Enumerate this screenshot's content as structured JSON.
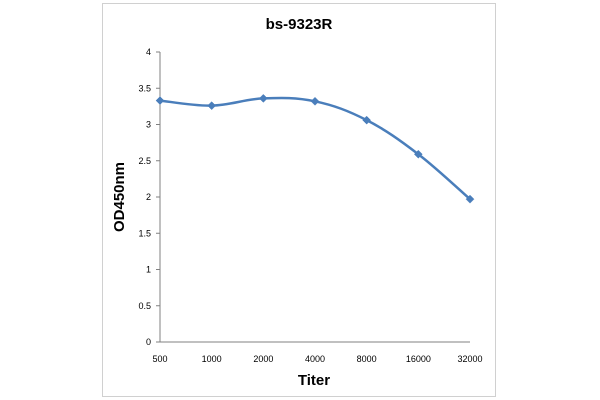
{
  "chart_data": {
    "type": "line",
    "title": "bs-9323R",
    "xlabel": "Titer",
    "ylabel": "OD450nm",
    "categories": [
      "500",
      "1000",
      "2000",
      "4000",
      "8000",
      "16000",
      "32000"
    ],
    "series": [
      {
        "values": [
          3.33,
          3.26,
          3.36,
          3.32,
          3.06,
          2.59,
          1.97
        ],
        "color": "#4a7ebb",
        "marker": "diamond"
      }
    ],
    "ylim": [
      0,
      4
    ],
    "yticks": [
      "0",
      "0.5",
      "1",
      "1.5",
      "2",
      "2.5",
      "3",
      "3.5",
      "4"
    ],
    "grid": false,
    "legend": "none"
  }
}
